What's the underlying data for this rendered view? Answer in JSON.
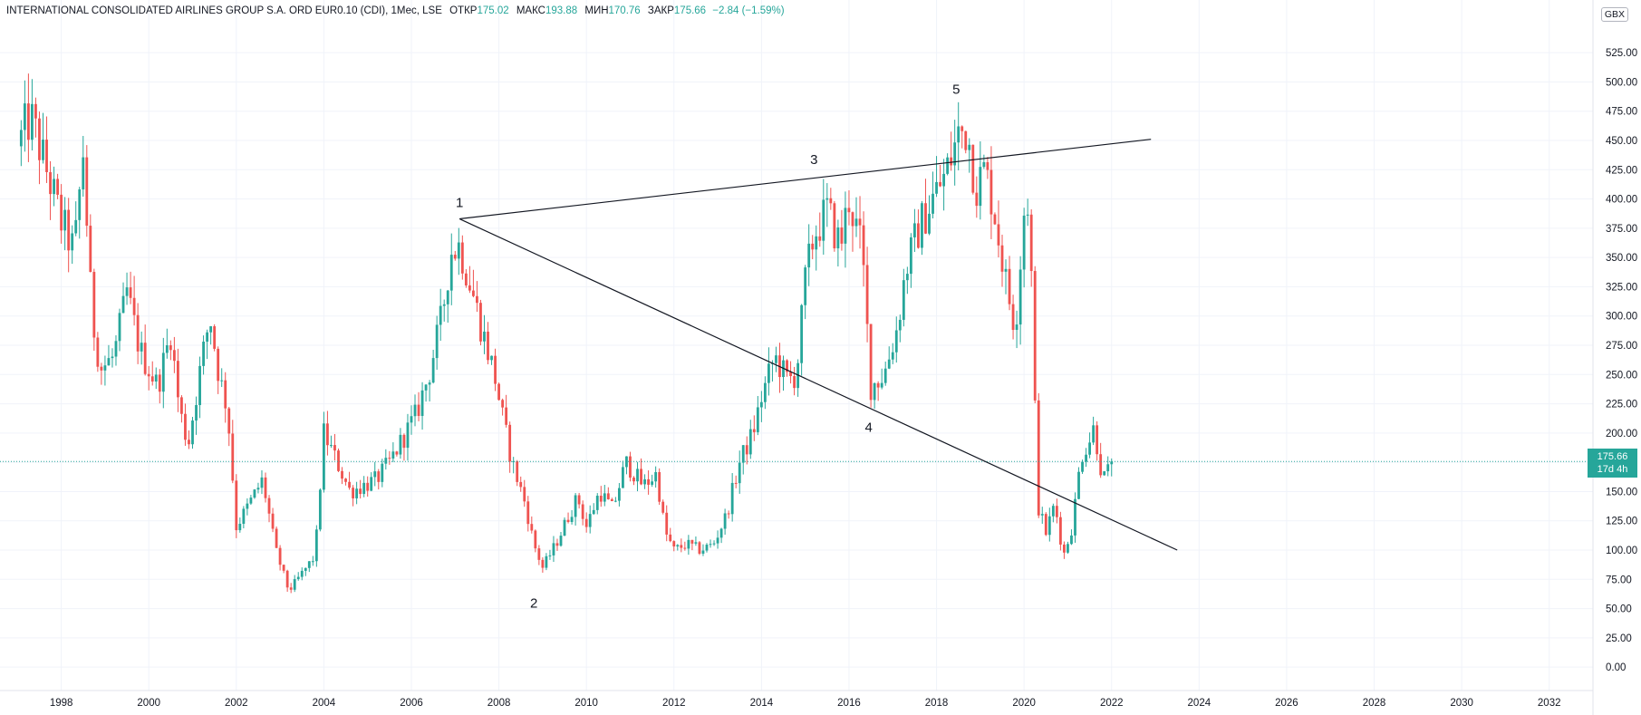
{
  "legend": {
    "title": "INTERNATIONAL CONSOLIDATED AIRLINES GROUP S.A. ORD EUR0.10 (CDI), 1Мес, LSE",
    "open_label": "ОТКР",
    "open_value": "175.02",
    "high_label": "МАКС",
    "high_value": "193.88",
    "low_label": "МИН",
    "low_value": "170.76",
    "close_label": "ЗАКР",
    "close_value": "175.66",
    "change": "−2.84 (−1.59%)"
  },
  "currency": "GBX",
  "last_price": {
    "value": "175.66",
    "countdown": "17d 4h",
    "price": 175.66
  },
  "colors": {
    "up": "#26a69a",
    "down": "#ef5350",
    "grid": "#f0f3fa",
    "line": "#131722"
  },
  "chart_data": {
    "type": "candlestick",
    "title": "INTERNATIONAL CONSOLIDATED AIRLINES GROUP S.A. ORD EUR0.10 (CDI), 1Мес, LSE",
    "ylim": [
      -20,
      570
    ],
    "xlim": [
      1996.6,
      2033.0
    ],
    "y_ticks": [
      0,
      25,
      50,
      75,
      100,
      125,
      150,
      175,
      200,
      225,
      250,
      275,
      300,
      325,
      350,
      375,
      400,
      425,
      450,
      475,
      500,
      525
    ],
    "y_tick_labels": [
      "0.00",
      "25.00",
      "50.00",
      "75.00",
      "100.00",
      "125.00",
      "150.00",
      "175.00",
      "200.00",
      "225.00",
      "250.00",
      "275.00",
      "300.00",
      "325.00",
      "350.00",
      "375.00",
      "400.00",
      "425.00",
      "450.00",
      "475.00",
      "500.00",
      "525.00"
    ],
    "x_ticks": [
      1998,
      2000,
      2002,
      2004,
      2006,
      2008,
      2010,
      2012,
      2014,
      2016,
      2018,
      2020,
      2022,
      2024,
      2026,
      2028,
      2030,
      2032
    ],
    "x_tick_labels": [
      "1998",
      "2000",
      "2002",
      "2004",
      "2006",
      "2008",
      "2010",
      "2012",
      "2014",
      "2016",
      "2018",
      "2020",
      "2022",
      "2024",
      "2026",
      "2028",
      "2030",
      "2032"
    ],
    "anchors": [
      [
        1997.0,
        445
      ],
      [
        1997.3,
        470
      ],
      [
        1997.7,
        420
      ],
      [
        1998.0,
        380
      ],
      [
        1998.3,
        355
      ],
      [
        1998.5,
        440
      ],
      [
        1998.7,
        300
      ],
      [
        1998.9,
        255
      ],
      [
        1999.2,
        265
      ],
      [
        1999.5,
        320
      ],
      [
        1999.8,
        270
      ],
      [
        2000.2,
        240
      ],
      [
        2000.5,
        285
      ],
      [
        2000.7,
        220
      ],
      [
        2000.9,
        190
      ],
      [
        2001.2,
        260
      ],
      [
        2001.4,
        300
      ],
      [
        2001.6,
        250
      ],
      [
        2001.8,
        220
      ],
      [
        2002.0,
        120
      ],
      [
        2002.3,
        140
      ],
      [
        2002.6,
        160
      ],
      [
        2002.9,
        100
      ],
      [
        2003.2,
        65
      ],
      [
        2003.5,
        80
      ],
      [
        2003.8,
        95
      ],
      [
        2004.0,
        200
      ],
      [
        2004.3,
        175
      ],
      [
        2004.6,
        150
      ],
      [
        2004.9,
        155
      ],
      [
        2005.2,
        160
      ],
      [
        2005.5,
        175
      ],
      [
        2005.8,
        195
      ],
      [
        2006.1,
        215
      ],
      [
        2006.4,
        250
      ],
      [
        2006.7,
        300
      ],
      [
        2006.9,
        355
      ],
      [
        2007.1,
        360
      ],
      [
        2007.4,
        320
      ],
      [
        2007.6,
        290
      ],
      [
        2007.9,
        250
      ],
      [
        2008.1,
        210
      ],
      [
        2008.3,
        175
      ],
      [
        2008.6,
        140
      ],
      [
        2008.8,
        105
      ],
      [
        2009.0,
        85
      ],
      [
        2009.3,
        105
      ],
      [
        2009.6,
        130
      ],
      [
        2009.8,
        145
      ],
      [
        2010.0,
        120
      ],
      [
        2010.3,
        150
      ],
      [
        2010.6,
        135
      ],
      [
        2010.9,
        175
      ],
      [
        2011.1,
        165
      ],
      [
        2011.3,
        155
      ],
      [
        2011.6,
        165
      ],
      [
        2011.8,
        115
      ],
      [
        2012.0,
        100
      ],
      [
        2012.3,
        105
      ],
      [
        2012.6,
        100
      ],
      [
        2012.9,
        105
      ],
      [
        2013.2,
        130
      ],
      [
        2013.5,
        175
      ],
      [
        2013.8,
        200
      ],
      [
        2014.0,
        230
      ],
      [
        2014.3,
        265
      ],
      [
        2014.6,
        245
      ],
      [
        2014.8,
        250
      ],
      [
        2015.0,
        330
      ],
      [
        2015.2,
        370
      ],
      [
        2015.5,
        390
      ],
      [
        2015.8,
        360
      ],
      [
        2016.0,
        400
      ],
      [
        2016.3,
        355
      ],
      [
        2016.5,
        240
      ],
      [
        2016.8,
        250
      ],
      [
        2017.1,
        290
      ],
      [
        2017.3,
        340
      ],
      [
        2017.6,
        375
      ],
      [
        2017.9,
        400
      ],
      [
        2018.2,
        420
      ],
      [
        2018.5,
        455
      ],
      [
        2018.7,
        460
      ],
      [
        2018.9,
        410
      ],
      [
        2019.1,
        425
      ],
      [
        2019.3,
        395
      ],
      [
        2019.6,
        325
      ],
      [
        2019.8,
        290
      ],
      [
        2020.0,
        390
      ],
      [
        2020.1,
        400
      ],
      [
        2020.2,
        300
      ],
      [
        2020.3,
        140
      ],
      [
        2020.5,
        115
      ],
      [
        2020.7,
        140
      ],
      [
        2020.9,
        95
      ],
      [
        2021.1,
        120
      ],
      [
        2021.3,
        180
      ],
      [
        2021.5,
        195
      ],
      [
        2021.6,
        205
      ],
      [
        2021.8,
        160
      ],
      [
        2021.9,
        165
      ],
      [
        2022.0,
        175.66
      ]
    ],
    "trend_lines": [
      {
        "name": "upper-trend-line",
        "from": {
          "date": 2007.1,
          "price": 383
        },
        "to": {
          "date": 2022.9,
          "price": 451
        }
      },
      {
        "name": "lower-trend-line",
        "from": {
          "date": 2007.1,
          "price": 383
        },
        "to": {
          "date": 2023.5,
          "price": 100
        }
      }
    ],
    "wave_labels": [
      {
        "text": "1",
        "date": 2007.1,
        "price": 393
      },
      {
        "text": "2",
        "date": 2008.8,
        "price": 51
      },
      {
        "text": "3",
        "date": 2015.2,
        "price": 430
      },
      {
        "text": "4",
        "date": 2016.45,
        "price": 201
      },
      {
        "text": "5",
        "date": 2018.45,
        "price": 490
      }
    ]
  }
}
